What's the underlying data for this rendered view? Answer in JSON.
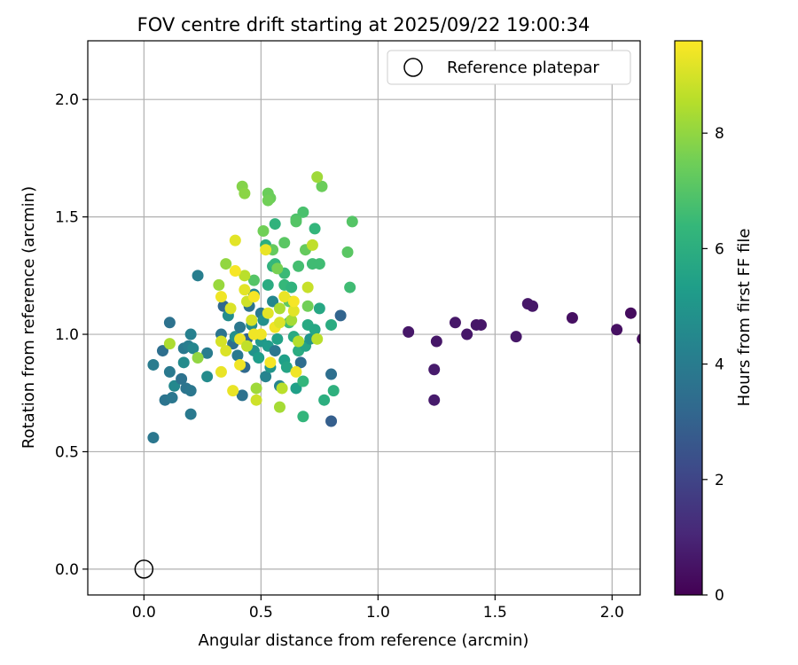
{
  "chart_data": {
    "type": "scatter",
    "title": "FOV centre drift starting at 2025/09/22 19:00:34",
    "xlabel": "Angular distance from reference (arcmin)",
    "ylabel": "Rotation from reference (arcmin)",
    "xlim": [
      -0.24,
      2.12
    ],
    "ylim": [
      -0.11,
      2.25
    ],
    "xticks": [
      0.0,
      0.5,
      1.0,
      1.5,
      2.0
    ],
    "xtick_labels": [
      "0.0",
      "0.5",
      "1.0",
      "1.5",
      "2.0"
    ],
    "yticks": [
      0.0,
      0.5,
      1.0,
      1.5,
      2.0
    ],
    "ytick_labels": [
      "0.0",
      "0.5",
      "1.0",
      "1.5",
      "2.0"
    ],
    "grid": true,
    "legend": {
      "position": "top-right",
      "entries": [
        "Reference platepar"
      ]
    },
    "reference_point": {
      "x": 0.0,
      "y": 0.0,
      "marker": "open-circle",
      "color": "#000000"
    },
    "colorbar": {
      "label": "Hours from first FF file",
      "range": [
        0,
        9.6
      ],
      "ticks": [
        0,
        2,
        4,
        6,
        8
      ],
      "tick_labels": [
        "0",
        "2",
        "4",
        "6",
        "8"
      ],
      "colormap": "viridis",
      "stops": [
        "#440154",
        "#482878",
        "#3e4989",
        "#31688e",
        "#26828e",
        "#1f9e89",
        "#35b779",
        "#6ece58",
        "#b5de2b",
        "#fde725"
      ]
    },
    "series": [
      {
        "points": [
          [
            1.13,
            1.01,
            0.6
          ],
          [
            1.25,
            0.97,
            0.6
          ],
          [
            1.24,
            0.85,
            0.7
          ],
          [
            1.24,
            0.72,
            0.7
          ],
          [
            1.33,
            1.05,
            0.6
          ],
          [
            1.38,
            1.0,
            0.6
          ],
          [
            1.42,
            1.04,
            0.6
          ],
          [
            1.44,
            1.04,
            0.6
          ],
          [
            1.59,
            0.99,
            0.6
          ],
          [
            1.64,
            1.13,
            0.6
          ],
          [
            1.66,
            1.12,
            0.6
          ],
          [
            1.83,
            1.07,
            0.4
          ],
          [
            2.02,
            1.02,
            0.4
          ],
          [
            2.08,
            1.09,
            0.3
          ],
          [
            2.13,
            0.98,
            0.3
          ],
          [
            0.04,
            0.56,
            3.8
          ],
          [
            0.04,
            0.87,
            4.0
          ],
          [
            0.08,
            0.93,
            3.5
          ],
          [
            0.09,
            0.72,
            3.7
          ],
          [
            0.11,
            1.05,
            3.6
          ],
          [
            0.11,
            0.84,
            3.9
          ],
          [
            0.12,
            0.73,
            3.8
          ],
          [
            0.13,
            0.78,
            4.5
          ],
          [
            0.16,
            0.81,
            3.6
          ],
          [
            0.17,
            0.94,
            3.9
          ],
          [
            0.17,
            0.88,
            4.6
          ],
          [
            0.18,
            0.77,
            3.7
          ],
          [
            0.19,
            0.95,
            4.1
          ],
          [
            0.2,
            0.76,
            3.8
          ],
          [
            0.2,
            0.66,
            3.9
          ],
          [
            0.2,
            1.0,
            4.2
          ],
          [
            0.21,
            0.94,
            4.4
          ],
          [
            0.23,
            1.25,
            4.1
          ],
          [
            0.27,
            0.92,
            4.0
          ],
          [
            0.27,
            0.82,
            4.6
          ],
          [
            0.33,
            1.0,
            3.7
          ],
          [
            0.34,
            1.12,
            3.2
          ],
          [
            0.36,
            1.08,
            4.7
          ],
          [
            0.38,
            0.96,
            3.5
          ],
          [
            0.39,
            0.99,
            4.8
          ],
          [
            0.4,
            0.91,
            3.9
          ],
          [
            0.41,
            1.03,
            3.8
          ],
          [
            0.42,
            0.74,
            3.6
          ],
          [
            0.43,
            0.86,
            3.3
          ],
          [
            0.44,
            0.98,
            3.1
          ],
          [
            0.45,
            1.12,
            3.6
          ],
          [
            0.46,
            1.04,
            4.7
          ],
          [
            0.47,
            1.17,
            4.4
          ],
          [
            0.47,
            0.93,
            4.9
          ],
          [
            0.49,
            0.9,
            5.3
          ],
          [
            0.5,
            1.09,
            3.9
          ],
          [
            0.5,
            0.97,
            5.1
          ],
          [
            0.51,
            1.06,
            4.8
          ],
          [
            0.52,
            0.82,
            4.3
          ],
          [
            0.53,
            0.95,
            5.2
          ],
          [
            0.54,
            0.86,
            5.0
          ],
          [
            0.55,
            1.14,
            4.4
          ],
          [
            0.56,
            0.93,
            3.8
          ],
          [
            0.57,
            0.98,
            5.5
          ],
          [
            0.58,
            0.78,
            4.3
          ],
          [
            0.6,
            0.89,
            5.4
          ],
          [
            0.61,
            0.86,
            5.6
          ],
          [
            0.64,
            0.99,
            5.8
          ],
          [
            0.65,
            0.77,
            5.4
          ],
          [
            0.66,
            0.93,
            5.9
          ],
          [
            0.67,
            0.88,
            3.4
          ],
          [
            0.68,
            0.8,
            6.3
          ],
          [
            0.69,
            0.95,
            5.6
          ],
          [
            0.7,
            1.04,
            5.8
          ],
          [
            0.71,
            0.98,
            4.9
          ],
          [
            0.73,
            1.02,
            5.7
          ],
          [
            0.75,
            1.11,
            5.7
          ],
          [
            0.77,
            0.72,
            6.0
          ],
          [
            0.8,
            0.83,
            3.5
          ],
          [
            0.8,
            0.63,
            2.9
          ],
          [
            0.81,
            0.76,
            6.1
          ],
          [
            0.84,
            1.08,
            3.1
          ],
          [
            0.8,
            1.04,
            5.9
          ],
          [
            0.6,
            1.21,
            6.4
          ],
          [
            0.62,
            1.05,
            6.6
          ],
          [
            0.68,
            0.65,
            6.3
          ],
          [
            0.56,
            1.47,
            6.2
          ],
          [
            0.52,
            1.38,
            6.0
          ],
          [
            0.55,
            1.29,
            6.1
          ],
          [
            0.53,
            1.21,
            5.9
          ],
          [
            0.56,
            1.3,
            6.4
          ],
          [
            0.6,
            1.26,
            6.5
          ],
          [
            0.63,
            1.2,
            6.2
          ],
          [
            0.66,
            1.29,
            6.7
          ],
          [
            0.68,
            1.52,
            6.8
          ],
          [
            0.72,
            1.3,
            6.6
          ],
          [
            0.73,
            1.45,
            6.3
          ],
          [
            0.75,
            1.3,
            6.6
          ],
          [
            0.88,
            1.2,
            6.6
          ],
          [
            0.65,
            1.49,
            6.9
          ],
          [
            0.47,
            1.23,
            7.0
          ],
          [
            0.54,
            1.58,
            7.4
          ],
          [
            0.6,
            1.39,
            7.1
          ],
          [
            0.55,
            1.36,
            7.3
          ],
          [
            0.51,
            1.44,
            7.5
          ],
          [
            0.57,
            1.28,
            7.6
          ],
          [
            0.62,
            1.14,
            7.2
          ],
          [
            0.69,
            1.36,
            7.3
          ],
          [
            0.7,
            1.12,
            7.5
          ],
          [
            0.53,
            1.6,
            7.4
          ],
          [
            0.53,
            1.57,
            7.5
          ],
          [
            0.65,
            1.48,
            7.0
          ],
          [
            0.76,
            1.63,
            7.4
          ],
          [
            0.87,
            1.35,
            7.1
          ],
          [
            0.89,
            1.48,
            7.0
          ],
          [
            0.42,
            1.63,
            7.8
          ],
          [
            0.43,
            1.6,
            7.9
          ],
          [
            0.35,
            1.3,
            8.0
          ],
          [
            0.32,
            1.21,
            8.1
          ],
          [
            0.58,
            0.69,
            8.3
          ],
          [
            0.48,
            0.77,
            8.2
          ],
          [
            0.59,
            0.77,
            8.6
          ],
          [
            0.58,
            1.11,
            8.4
          ],
          [
            0.63,
            1.06,
            8.3
          ],
          [
            0.74,
            1.67,
            8.2
          ],
          [
            0.72,
            1.38,
            8.7
          ],
          [
            0.7,
            1.2,
            8.8
          ],
          [
            0.66,
            0.97,
            8.5
          ],
          [
            0.74,
            0.98,
            8.6
          ],
          [
            0.23,
            0.9,
            8.0
          ],
          [
            0.11,
            0.96,
            8.4
          ],
          [
            0.48,
            0.72,
            8.9
          ],
          [
            0.43,
            1.25,
            8.6
          ],
          [
            0.44,
            1.14,
            8.9
          ],
          [
            0.46,
            1.06,
            9.0
          ],
          [
            0.39,
            1.4,
            9.2
          ],
          [
            0.38,
            0.76,
            9.3
          ],
          [
            0.33,
            1.16,
            9.4
          ],
          [
            0.33,
            0.84,
            9.3
          ],
          [
            0.37,
            1.11,
            9.1
          ],
          [
            0.39,
            1.27,
            9.5
          ],
          [
            0.41,
            0.87,
            9.4
          ],
          [
            0.41,
            0.98,
            9.3
          ],
          [
            0.43,
            1.19,
            9.2
          ],
          [
            0.47,
            1.16,
            9.5
          ],
          [
            0.47,
            1.0,
            9.4
          ],
          [
            0.52,
            1.36,
            9.3
          ],
          [
            0.53,
            1.09,
            9.2
          ],
          [
            0.54,
            0.88,
            9.5
          ],
          [
            0.56,
            1.03,
            9.4
          ],
          [
            0.58,
            1.05,
            9.1
          ],
          [
            0.6,
            1.16,
            9.3
          ],
          [
            0.64,
            1.1,
            9.2
          ],
          [
            0.64,
            1.14,
            9.5
          ],
          [
            0.65,
            0.84,
            9.4
          ],
          [
            0.33,
            0.97,
            9.0
          ],
          [
            0.35,
            0.93,
            9.1
          ],
          [
            0.44,
            0.95,
            8.7
          ],
          [
            0.5,
            1.0,
            9.4
          ]
        ]
      }
    ]
  }
}
